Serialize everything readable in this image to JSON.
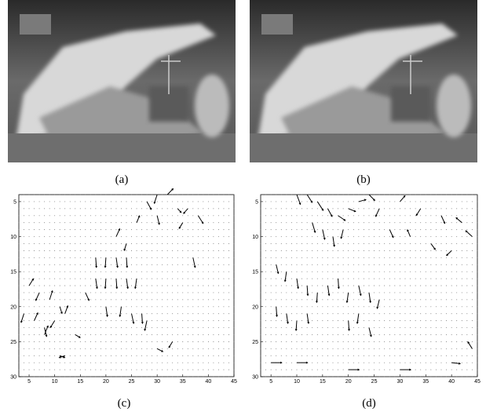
{
  "figure": {
    "labels": [
      "(a)",
      "(b)",
      "(c)",
      "(d)"
    ]
  },
  "chart_data": [
    {
      "type": "quiver",
      "color": "#000000",
      "xlim": [
        3,
        45
      ],
      "ylim": [
        30,
        4
      ],
      "xticks": [
        5,
        10,
        15,
        20,
        25,
        30,
        35,
        40,
        45
      ],
      "yticks": [
        5,
        10,
        15,
        20,
        25,
        30
      ],
      "series": [
        {
          "x": [
            28,
            30,
            32,
            34,
            36,
            38,
            26,
            30,
            35,
            22,
            24,
            18,
            20,
            22,
            24,
            18,
            20,
            22,
            24,
            26,
            16,
            20,
            23,
            25,
            27,
            28,
            5,
            7,
            9,
            11,
            4,
            6,
            8,
            10,
            12,
            14,
            8,
            12,
            30,
            33,
            11,
            37
          ],
          "y": [
            5,
            4,
            4,
            6,
            6,
            7,
            8,
            7,
            8,
            10,
            11,
            13,
            13,
            13,
            13,
            16,
            16,
            16,
            16,
            16,
            18,
            20,
            20,
            21,
            21,
            22,
            17,
            18,
            19,
            20,
            21,
            22,
            23,
            22,
            21,
            24,
            24,
            27,
            26,
            25,
            27,
            13
          ],
          "u": [
            0.6,
            -0.4,
            0.8,
            0.5,
            -0.6,
            0.7,
            0.4,
            0.3,
            -0.5,
            0.5,
            -0.3,
            0.1,
            -0.1,
            0.2,
            0.1,
            0.2,
            -0.1,
            0.1,
            0.2,
            -0.2,
            0.5,
            0.2,
            -0.2,
            0.3,
            0.1,
            -0.3,
            0.6,
            -0.5,
            0.4,
            0.3,
            -0.4,
            0.5,
            0.3,
            -0.6,
            0.4,
            0.7,
            0.5,
            -0.8,
            0.8,
            -0.5,
            0.7,
            0.3
          ],
          "v": [
            0.8,
            0.9,
            -0.6,
            0.4,
            0.5,
            0.8,
            -0.7,
            0.9,
            0.6,
            -0.8,
            0.7,
            1,
            1,
            1,
            1,
            1,
            1,
            1,
            1,
            1,
            0.8,
            1,
            1,
            1,
            1,
            1,
            -0.7,
            0.8,
            -0.9,
            0.7,
            0.9,
            -0.8,
            0.9,
            0.7,
            -0.8,
            0.3,
            -0.9,
            0.2,
            0.3,
            0.6,
            0.2,
            1
          ]
        }
      ]
    },
    {
      "type": "quiver",
      "color": "#000000",
      "xlim": [
        3,
        45
      ],
      "ylim": [
        30,
        4
      ],
      "xticks": [
        5,
        10,
        15,
        20,
        25,
        30,
        35,
        40,
        45
      ],
      "yticks": [
        5,
        10,
        15,
        20,
        25,
        30
      ],
      "series": [
        {
          "x": [
            10,
            12,
            14,
            16,
            18,
            20,
            22,
            24,
            26,
            30,
            34,
            38,
            42,
            44,
            13,
            15,
            17,
            19,
            28,
            32,
            36,
            40,
            6,
            8,
            10,
            12,
            14,
            16,
            18,
            20,
            22,
            24,
            26,
            6,
            8,
            10,
            12,
            20,
            22,
            24,
            5,
            10,
            20,
            30,
            40,
            44
          ],
          "y": [
            4,
            4,
            5,
            6,
            7,
            6,
            5,
            4,
            6,
            5,
            6,
            7,
            8,
            10,
            8,
            9,
            10,
            9,
            9,
            10,
            11,
            12,
            14,
            15,
            16,
            17,
            18,
            17,
            16,
            18,
            17,
            18,
            19,
            20,
            21,
            22,
            21,
            22,
            21,
            23,
            28,
            28,
            29,
            29,
            28,
            26
          ],
          "u": [
            0.5,
            0.7,
            0.8,
            0.6,
            1,
            1,
            1,
            0.8,
            -0.5,
            0.7,
            -0.6,
            0.5,
            -0.8,
            -0.9,
            0.4,
            0.3,
            0.2,
            -0.3,
            0.5,
            -0.4,
            0.6,
            -0.7,
            0.3,
            -0.2,
            0.2,
            0.1,
            -0.1,
            0.2,
            0.1,
            -0.2,
            0.3,
            0.2,
            -0.3,
            0.1,
            0.2,
            -0.1,
            0.2,
            0.1,
            -0.2,
            0.3,
            1.5,
            1.5,
            1.5,
            1.5,
            1.2,
            -0.6
          ],
          "v": [
            1,
            0.8,
            0.9,
            0.8,
            0.5,
            0.3,
            -0.2,
            0.6,
            0.8,
            -0.6,
            0.7,
            0.8,
            -0.5,
            -0.6,
            1,
            1,
            1,
            0.9,
            0.8,
            -0.7,
            0.6,
            0.5,
            0.9,
            1,
            1,
            1,
            1,
            1,
            1,
            1,
            1,
            1,
            0.9,
            1,
            1,
            1,
            1,
            1,
            1,
            0.9,
            0,
            0,
            0,
            0,
            0.1,
            -0.7
          ]
        }
      ]
    }
  ]
}
